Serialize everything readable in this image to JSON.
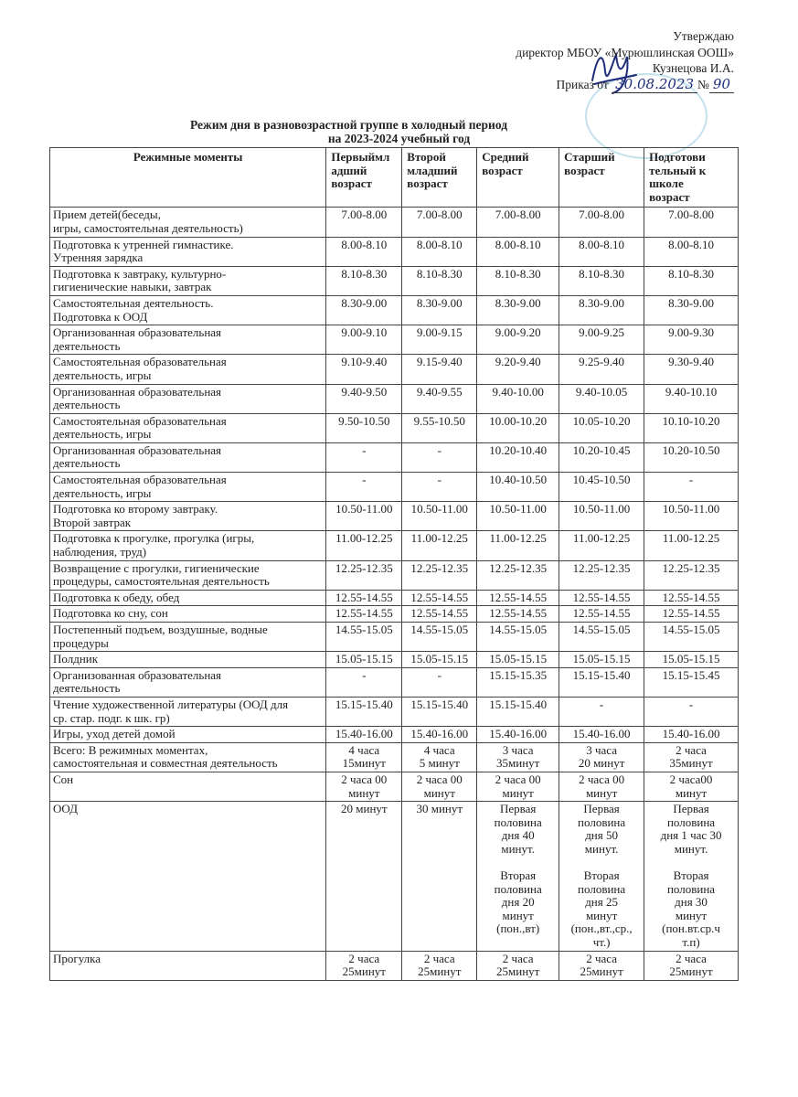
{
  "approval": {
    "line1": "Утверждаю",
    "line2": "директор МБОУ «Мурюшлинская  ООШ»",
    "line3": "Кузнецова И.А.",
    "order_prefix": "Приказ от",
    "order_date": "30.08.2023",
    "order_no_label": "№",
    "order_no": "90"
  },
  "title": {
    "line1": "Режим дня в разновозрастной группе в холодный период",
    "line2": "на 2023-2024 учебный год"
  },
  "table": {
    "headers": [
      "Режимные моменты",
      "Первыймл\nадший\nвозраст",
      "Второй\nмладший\nвозраст",
      "Средний\nвозраст",
      "Старший\nвозраст",
      "Подготови\nтельный к\nшколе\nвозраст"
    ],
    "rows": [
      [
        "Прием детей(беседы,\nигры, самостоятельная деятельность)",
        "7.00-8.00",
        "7.00-8.00",
        "7.00-8.00",
        "7.00-8.00",
        "7.00-8.00"
      ],
      [
        "Подготовка к утренней гимнастике.\nУтренняя зарядка",
        "8.00-8.10",
        "8.00-8.10",
        "8.00-8.10",
        "8.00-8.10",
        "8.00-8.10"
      ],
      [
        "Подготовка к завтраку, культурно-\nгигиенические навыки, завтрак",
        "8.10-8.30",
        "8.10-8.30",
        "8.10-8.30",
        "8.10-8.30",
        "8.10-8.30"
      ],
      [
        "Самостоятельная деятельность.\nПодготовка к ООД",
        "8.30-9.00",
        "8.30-9.00",
        "8.30-9.00",
        "8.30-9.00",
        "8.30-9.00"
      ],
      [
        "Организованная образовательная\nдеятельность",
        "9.00-9.10",
        "9.00-9.15",
        "9.00-9.20",
        "9.00-9.25",
        "9.00-9.30"
      ],
      [
        "Самостоятельная образовательная\nдеятельность, игры",
        "9.10-9.40",
        "9.15-9.40",
        "9.20-9.40",
        "9.25-9.40",
        "9.30-9.40"
      ],
      [
        "Организованная образовательная\nдеятельность",
        "9.40-9.50",
        "9.40-9.55",
        "9.40-10.00",
        "9.40-10.05",
        "9.40-10.10"
      ],
      [
        "Самостоятельная образовательная\nдеятельность, игры",
        "9.50-10.50",
        "9.55-10.50",
        "10.00-10.20",
        "10.05-10.20",
        "10.10-10.20"
      ],
      [
        "Организованная образовательная\nдеятельность",
        "-",
        "-",
        "10.20-10.40",
        "10.20-10.45",
        "10.20-10.50"
      ],
      [
        "Самостоятельная образовательная\nдеятельность, игры",
        "-",
        "-",
        "10.40-10.50",
        "10.45-10.50",
        "-"
      ],
      [
        "Подготовка ко второму завтраку.\nВторой завтрак",
        "10.50-11.00",
        "10.50-11.00",
        "10.50-11.00",
        "10.50-11.00",
        "10.50-11.00"
      ],
      [
        "Подготовка к прогулке, прогулка (игры,\nнаблюдения, труд)",
        "11.00-12.25",
        "11.00-12.25",
        "11.00-12.25",
        "11.00-12.25",
        "11.00-12.25"
      ],
      [
        "Возвращение с прогулки, гигиенические\nпроцедуры, самостоятельная деятельность",
        "12.25-12.35",
        "12.25-12.35",
        "12.25-12.35",
        "12.25-12.35",
        "12.25-12.35"
      ],
      [
        "Подготовка к обеду, обед",
        "12.55-14.55",
        "12.55-14.55",
        "12.55-14.55",
        "12.55-14.55",
        "12.55-14.55"
      ],
      [
        "Подготовка ко сну, сон",
        "12.55-14.55",
        "12.55-14.55",
        "12.55-14.55",
        "12.55-14.55",
        "12.55-14.55"
      ],
      [
        "Постепенный подъем, воздушные, водные\nпроцедуры",
        "14.55-15.05",
        "14.55-15.05",
        "14.55-15.05",
        "14.55-15.05",
        "14.55-15.05"
      ],
      [
        "Полдник",
        "15.05-15.15",
        "15.05-15.15",
        "15.05-15.15",
        "15.05-15.15",
        "15.05-15.15"
      ],
      [
        "Организованная образовательная\nдеятельность",
        "-",
        "-",
        "15.15-15.35",
        "15.15-15.40",
        "15.15-15.45"
      ],
      [
        "Чтение художественной литературы (ООД для\nср. стар. подг. к шк. гр)",
        "15.15-15.40",
        "15.15-15.40",
        "15.15-15.40",
        "-",
        "-"
      ],
      [
        "Игры, уход детей домой",
        "15.40-16.00",
        "15.40-16.00",
        "15.40-16.00",
        "15.40-16.00",
        "15.40-16.00"
      ],
      [
        "Всего: В режимных моментах,\nсамостоятельная и совместная деятельность",
        "4 часа\n15минут",
        "4 часа\n5 минут",
        "3 часа\n35минут",
        "3 часа\n20 минут",
        "2 часа\n35минут"
      ],
      [
        "Сон",
        "2 часа 00\nминут",
        "2 часа 00\nминут",
        "2 часа 00\nминут",
        "2 часа 00\nминут",
        "2 часа00\nминут"
      ],
      [
        "ООД",
        "20 минут",
        "30 минут",
        "Первая\nполовина\nдня 40\nминут.\n\nВторая\nполовина\nдня 20\nминут\n(пон.,вт)",
        "Первая\nполовина\nдня 50\nминут.\n\nВторая\nполовина\nдня 25\nминут\n(пон.,вт.,ср.,\nчт.)",
        "Первая\nполовина\nдня 1 час 30\nминут.\n\nВторая\nполовина\nдня 30\nминут\n(пон.вт.ср.ч\nт.п)"
      ],
      [
        "Прогулка",
        "2 часа\n25минут",
        "2 часа\n25минут",
        "2 часа\n25минут",
        "2 часа\n25минут",
        "2 часа\n25минут"
      ]
    ]
  }
}
